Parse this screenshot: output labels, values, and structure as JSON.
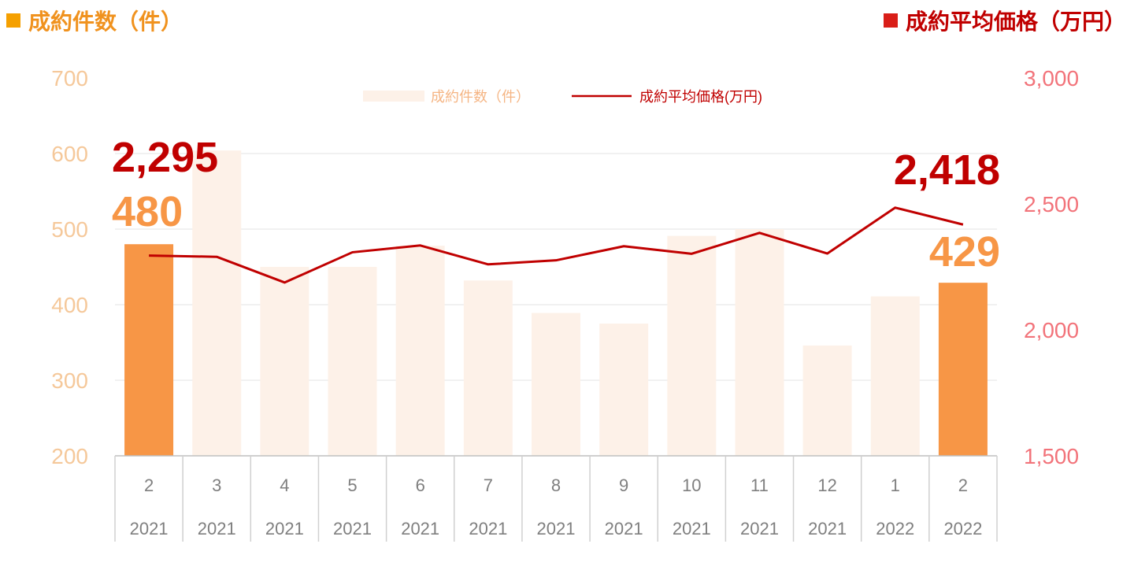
{
  "left_title": "成約件数（件）",
  "right_title": "成約平均価格（万円）",
  "colors": {
    "bar_faded": "#FDF1E8",
    "bar_highlight": "#F79646",
    "line": "#C00000",
    "left_axis_text": "#F5C89A",
    "right_axis_text": "#F2737A",
    "left_title": "#F0921E",
    "right_title": "#C00000"
  },
  "chart_data": {
    "type": "bar",
    "categories": [
      "2",
      "3",
      "4",
      "5",
      "6",
      "7",
      "8",
      "9",
      "10",
      "11",
      "12",
      "1",
      "2"
    ],
    "category_years": [
      "2021",
      "2021",
      "2021",
      "2021",
      "2021",
      "2021",
      "2021",
      "2021",
      "2021",
      "2021",
      "2021",
      "2022",
      "2022"
    ],
    "series": [
      {
        "name": "成約件数（件）",
        "type": "bar",
        "axis": "left",
        "values": [
          480,
          604,
          450,
          450,
          478,
          432,
          389,
          375,
          491,
          500,
          346,
          411,
          429
        ],
        "highlight_indices": [
          0,
          12
        ]
      },
      {
        "name": "成約平均価格(万円)",
        "type": "line",
        "axis": "right",
        "values": [
          2295,
          2290,
          2188,
          2308,
          2335,
          2260,
          2276,
          2332,
          2302,
          2385,
          2303,
          2485,
          2418
        ]
      }
    ],
    "left_axis": {
      "ylim": [
        200,
        700
      ],
      "ticks": [
        "200",
        "300",
        "400",
        "500",
        "600",
        "700"
      ]
    },
    "right_axis": {
      "ylim": [
        1500,
        3000
      ],
      "ticks": [
        "1,500",
        "2,000",
        "2,500",
        "3,000"
      ]
    },
    "annotations": [
      {
        "text": "2,295",
        "series": "line",
        "index": 0
      },
      {
        "text": "480",
        "series": "bar",
        "index": 0
      },
      {
        "text": "2,418",
        "series": "line",
        "index": 12
      },
      {
        "text": "429",
        "series": "bar",
        "index": 12
      }
    ],
    "legend_position": "top-center",
    "grid": true
  }
}
